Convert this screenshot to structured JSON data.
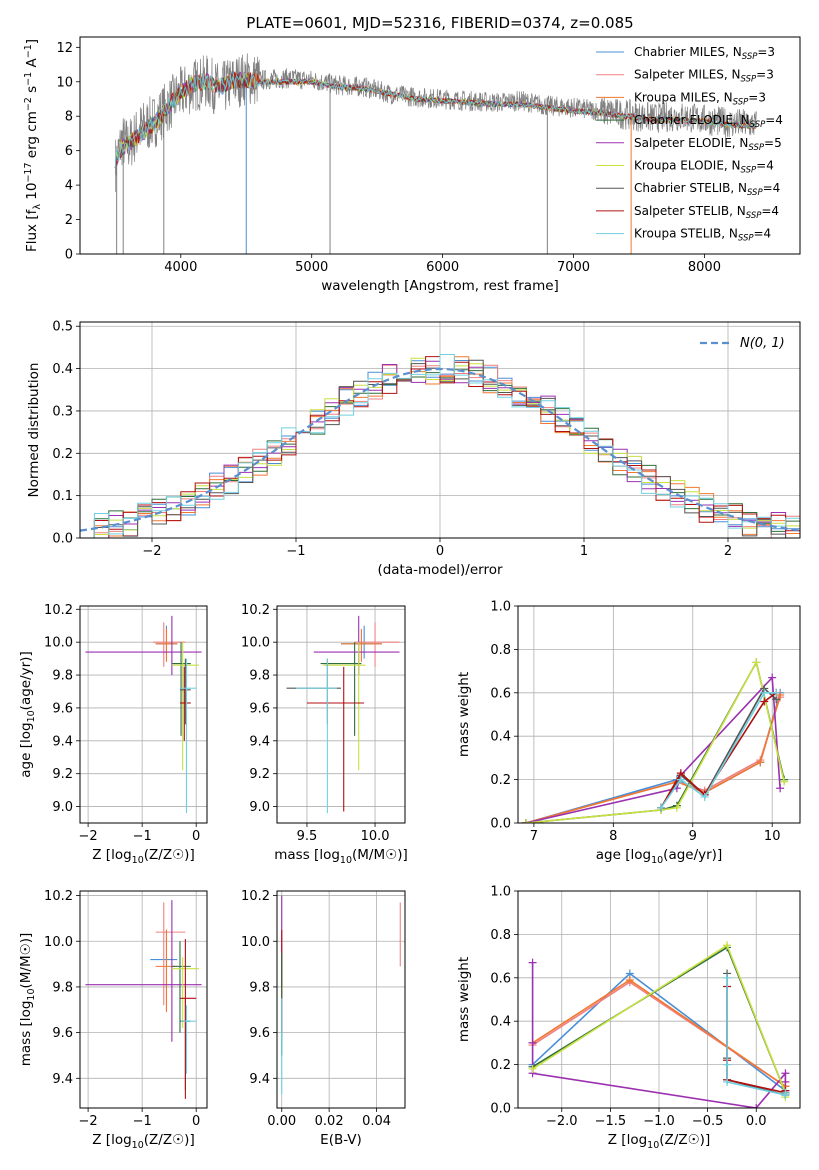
{
  "figure_title": "PLATE=0601, MJD=52316, FIBERID=0374, z=0.085",
  "colors": {
    "Chabrier MILES": "#4a8fd6",
    "Salpeter MILES": "#f08080",
    "Kroupa MILES": "#f07830",
    "Chabrier ELODIE": "#2e6e3a",
    "Salpeter ELODIE": "#9b30b0",
    "Kroupa ELODIE": "#c8e040",
    "Chabrier STELIB": "#555555",
    "Salpeter STELIB": "#b01010",
    "Kroupa STELIB": "#70d0e0",
    "grid": "#b0b0b0",
    "normal_fit": "#5a8fd0"
  },
  "legend_spectrum": [
    {
      "name": "Chabrier MILES",
      "label": "Chabrier MILES, N",
      "sub": "SSP",
      "tail": "=3"
    },
    {
      "name": "Salpeter MILES",
      "label": "Salpeter MILES, N",
      "sub": "SSP",
      "tail": "=3"
    },
    {
      "name": "Kroupa MILES",
      "label": "Kroupa MILES, N",
      "sub": "SSP",
      "tail": "=3"
    },
    {
      "name": "Chabrier ELODIE",
      "label": "Chabrier ELODIE, N",
      "sub": "SSP",
      "tail": "=4"
    },
    {
      "name": "Salpeter ELODIE",
      "label": "Salpeter ELODIE, N",
      "sub": "SSP",
      "tail": "=5"
    },
    {
      "name": "Kroupa ELODIE",
      "label": "Kroupa ELODIE, N",
      "sub": "SSP",
      "tail": "=4"
    },
    {
      "name": "Chabrier STELIB",
      "label": "Chabrier STELIB, N",
      "sub": "SSP",
      "tail": "=4"
    },
    {
      "name": "Salpeter STELIB",
      "label": "Salpeter STELIB, N",
      "sub": "SSP",
      "tail": "=4"
    },
    {
      "name": "Kroupa STELIB",
      "label": "Kroupa STELIB, N",
      "sub": "SSP",
      "tail": "=4"
    }
  ],
  "chart_data": [
    {
      "id": "spectrum",
      "type": "line",
      "title": "PLATE=0601, MJD=52316, FIBERID=0374, z=0.085",
      "xlabel": "wavelength [Angstrom, rest frame]",
      "ylabel": "Flux [f_λ 10^-17 erg cm^-2 s^-1 A^-1]",
      "xlim": [
        3230,
        8730
      ],
      "ylim": [
        0,
        12.6
      ],
      "xticks": [
        4000,
        5000,
        6000,
        7000,
        8000
      ],
      "yticks": [
        0,
        2,
        4,
        6,
        8,
        10,
        12
      ],
      "grid": false,
      "legend": "top-right",
      "data_x": [
        3500,
        3550,
        3600,
        3700,
        3800,
        3900,
        4000,
        4100,
        4200,
        4300,
        4400,
        4500,
        4600,
        4800,
        5000,
        5200,
        5400,
        5600,
        5800,
        6000,
        6200,
        6400,
        6600,
        6800,
        7000,
        7200,
        7400,
        7600,
        7800,
        8000,
        8200,
        8400
      ],
      "data_y": [
        5.2,
        6.6,
        6.3,
        7.3,
        7.7,
        8.6,
        9.3,
        9.8,
        10.0,
        9.5,
        10.0,
        10.2,
        10.1,
        10.2,
        10.1,
        9.8,
        9.7,
        9.3,
        9.1,
        9.0,
        8.9,
        8.8,
        8.9,
        8.6,
        8.5,
        8.3,
        8.1,
        7.9,
        8.0,
        7.8,
        7.6,
        7.5
      ],
      "model_y": [
        5.5,
        6.2,
        6.4,
        7.0,
        7.6,
        8.5,
        9.4,
        9.9,
        10.0,
        9.7,
        10.1,
        10.1,
        10.0,
        10.0,
        10.0,
        9.7,
        9.6,
        9.3,
        9.0,
        8.9,
        8.8,
        8.7,
        8.7,
        8.5,
        8.3,
        8.2,
        8.0,
        7.8,
        7.8,
        7.7,
        7.5,
        7.4
      ]
    },
    {
      "id": "residuals",
      "type": "line",
      "xlabel": "(data-model)/error",
      "ylabel": "Normed distribution",
      "xlim": [
        -2.5,
        2.5
      ],
      "ylim": [
        0,
        0.51
      ],
      "xticks": [
        -2,
        -1,
        0,
        1,
        2
      ],
      "yticks": [
        0.0,
        0.1,
        0.2,
        0.3,
        0.4,
        0.5
      ],
      "grid": true,
      "legend": "top-right",
      "legend_label": "N(0, 1)",
      "bin_width": 0.1
    },
    {
      "id": "age-vs-Z",
      "type": "scatter",
      "xlabel": "Z [log10(Z/Z☉)]",
      "ylabel": "age [log10(age/yr)]",
      "xlim": [
        -2.15,
        0.2
      ],
      "ylim": [
        8.9,
        10.22
      ],
      "xticks": [
        -2,
        -1,
        0
      ],
      "yticks": [
        9.0,
        9.2,
        9.4,
        9.6,
        9.8,
        10.0,
        10.2
      ],
      "grid": true,
      "points": [
        {
          "s": "Chabrier MILES",
          "x": -0.55,
          "xlo": -0.75,
          "xhi": -0.35,
          "y": 9.99,
          "ylo": 9.9,
          "yhi": 10.1
        },
        {
          "s": "Salpeter MILES",
          "x": -0.6,
          "xlo": -0.8,
          "xhi": -0.2,
          "y": 10.0,
          "ylo": 9.85,
          "yhi": 10.12
        },
        {
          "s": "Kroupa MILES",
          "x": -0.55,
          "xlo": -0.75,
          "xhi": -0.35,
          "y": 9.99,
          "ylo": 9.88,
          "yhi": 10.08
        },
        {
          "s": "Chabrier ELODIE",
          "x": -0.28,
          "xlo": -0.45,
          "xhi": -0.1,
          "y": 9.87,
          "ylo": 9.43,
          "yhi": 10.0
        },
        {
          "s": "Salpeter ELODIE",
          "x": -0.45,
          "xlo": -2.05,
          "xhi": 0.1,
          "y": 9.94,
          "ylo": 9.8,
          "yhi": 10.16
        },
        {
          "s": "Kroupa ELODIE",
          "x": -0.25,
          "xlo": -0.45,
          "xhi": 0.05,
          "y": 9.86,
          "ylo": 9.22,
          "yhi": 10.0
        },
        {
          "s": "Chabrier STELIB",
          "x": -0.2,
          "xlo": -0.3,
          "xhi": -0.1,
          "y": 9.71,
          "ylo": 9.5,
          "yhi": 9.9
        },
        {
          "s": "Salpeter STELIB",
          "x": -0.22,
          "xlo": -0.3,
          "xhi": -0.1,
          "y": 9.63,
          "ylo": 9.4,
          "yhi": 9.85
        },
        {
          "s": "Kroupa STELIB",
          "x": -0.18,
          "xlo": -0.28,
          "xhi": 0.0,
          "y": 9.72,
          "ylo": 8.96,
          "yhi": 9.9
        }
      ]
    },
    {
      "id": "age-vs-mass",
      "type": "scatter",
      "xlabel": "mass [log10(M/M☉)]",
      "ylabel": "",
      "xlim": [
        9.28,
        10.22
      ],
      "ylim": [
        8.9,
        10.22
      ],
      "xticks": [
        9.5,
        10.0
      ],
      "yticks": [
        9.0,
        9.2,
        9.4,
        9.6,
        9.8,
        10.0,
        10.2
      ],
      "grid": true,
      "points": [
        {
          "s": "Chabrier MILES",
          "x": 9.92,
          "xlo": 9.75,
          "xhi": 10.05,
          "y": 9.99,
          "ylo": 9.9,
          "yhi": 10.1
        },
        {
          "s": "Salpeter MILES",
          "x": 10.0,
          "xlo": 9.85,
          "xhi": 10.18,
          "y": 10.0,
          "ylo": 9.85,
          "yhi": 10.12
        },
        {
          "s": "Kroupa MILES",
          "x": 9.9,
          "xlo": 9.75,
          "xhi": 10.05,
          "y": 9.99,
          "ylo": 9.88,
          "yhi": 10.08
        },
        {
          "s": "Chabrier ELODIE",
          "x": 9.85,
          "xlo": 9.6,
          "xhi": 9.9,
          "y": 9.87,
          "ylo": 9.43,
          "yhi": 10.0
        },
        {
          "s": "Salpeter ELODIE",
          "x": 9.88,
          "xlo": 9.55,
          "xhi": 10.18,
          "y": 9.94,
          "ylo": 9.8,
          "yhi": 10.16
        },
        {
          "s": "Kroupa ELODIE",
          "x": 9.88,
          "xlo": 9.62,
          "xhi": 9.93,
          "y": 9.86,
          "ylo": 9.22,
          "yhi": 10.0
        },
        {
          "s": "Chabrier STELIB",
          "x": 9.65,
          "xlo": 9.35,
          "xhi": 9.75,
          "y": 9.72,
          "ylo": 9.5,
          "yhi": 9.9
        },
        {
          "s": "Salpeter STELIB",
          "x": 9.77,
          "xlo": 9.5,
          "xhi": 9.92,
          "y": 9.63,
          "ylo": 8.97,
          "yhi": 9.85
        },
        {
          "s": "Kroupa STELIB",
          "x": 9.65,
          "xlo": 9.42,
          "xhi": 9.72,
          "y": 9.72,
          "ylo": 8.96,
          "yhi": 9.9
        }
      ]
    },
    {
      "id": "weight-vs-age",
      "type": "line",
      "xlabel": "age [log10(age/yr)]",
      "ylabel": "mass weight",
      "xlim": [
        6.8,
        10.35
      ],
      "ylim": [
        0,
        1.0
      ],
      "xticks": [
        7,
        8,
        9,
        10
      ],
      "yticks": [
        0.0,
        0.2,
        0.4,
        0.6,
        0.8,
        1.0
      ],
      "grid": true,
      "series": [
        {
          "s": "Chabrier MILES",
          "x": [
            6.9,
            8.8,
            9.15,
            9.85,
            10.1
          ],
          "y": [
            0.0,
            0.2,
            0.14,
            0.28,
            0.6
          ]
        },
        {
          "s": "Salpeter MILES",
          "x": [
            6.9,
            8.8,
            9.15,
            9.85,
            10.1
          ],
          "y": [
            0.0,
            0.19,
            0.15,
            0.29,
            0.58
          ]
        },
        {
          "s": "Kroupa MILES",
          "x": [
            6.9,
            8.8,
            9.15,
            9.85,
            10.1
          ],
          "y": [
            0.0,
            0.19,
            0.14,
            0.28,
            0.59
          ]
        },
        {
          "s": "Chabrier ELODIE",
          "x": [
            6.9,
            8.6,
            8.8,
            9.8,
            10.15
          ],
          "y": [
            0.0,
            0.06,
            0.08,
            0.74,
            0.2
          ]
        },
        {
          "s": "Salpeter ELODIE",
          "x": [
            6.9,
            8.8,
            8.85,
            10.0,
            10.1
          ],
          "y": [
            0.0,
            0.16,
            0.22,
            0.67,
            0.16
          ]
        },
        {
          "s": "Kroupa ELODIE",
          "x": [
            6.9,
            8.6,
            8.8,
            9.8,
            10.15
          ],
          "y": [
            0.0,
            0.06,
            0.07,
            0.74,
            0.19
          ]
        },
        {
          "s": "Chabrier STELIB",
          "x": [
            8.6,
            8.85,
            9.15,
            9.9,
            10.05
          ],
          "y": [
            0.07,
            0.22,
            0.13,
            0.62,
            0.57
          ]
        },
        {
          "s": "Salpeter STELIB",
          "x": [
            8.6,
            8.85,
            9.15,
            9.9,
            10.05
          ],
          "y": [
            0.07,
            0.23,
            0.13,
            0.56,
            0.6
          ]
        },
        {
          "s": "Kroupa STELIB",
          "x": [
            8.6,
            8.85,
            9.15,
            9.9,
            10.05
          ],
          "y": [
            0.07,
            0.2,
            0.12,
            0.6,
            0.6
          ]
        }
      ]
    },
    {
      "id": "mass-vs-Z",
      "type": "scatter",
      "xlabel": "Z [log10(Z/Z☉)]",
      "ylabel": "mass [log10(M/M☉)]",
      "xlim": [
        -2.15,
        0.2
      ],
      "ylim": [
        9.27,
        10.22
      ],
      "xticks": [
        -2,
        -1,
        0
      ],
      "yticks": [
        9.4,
        9.6,
        9.8,
        10.0,
        10.2
      ],
      "grid": true,
      "points": [
        {
          "s": "Chabrier MILES",
          "x": -0.55,
          "xlo": -0.85,
          "xhi": -0.35,
          "y": 9.92,
          "ylo": 9.7,
          "yhi": 10.05
        },
        {
          "s": "Salpeter MILES",
          "x": -0.6,
          "xlo": -0.75,
          "xhi": -0.2,
          "y": 10.04,
          "ylo": 9.72,
          "yhi": 10.17
        },
        {
          "s": "Kroupa MILES",
          "x": -0.55,
          "xlo": -0.75,
          "xhi": -0.35,
          "y": 9.89,
          "ylo": 9.69,
          "yhi": 10.05
        },
        {
          "s": "Chabrier ELODIE",
          "x": -0.3,
          "xlo": -0.45,
          "xhi": -0.1,
          "y": 9.89,
          "ylo": 9.6,
          "yhi": 10.0
        },
        {
          "s": "Salpeter ELODIE",
          "x": -0.45,
          "xlo": -2.05,
          "xhi": 0.1,
          "y": 9.81,
          "ylo": 9.56,
          "yhi": 10.18
        },
        {
          "s": "Kroupa ELODIE",
          "x": -0.25,
          "xlo": -0.45,
          "xhi": 0.05,
          "y": 9.88,
          "ylo": 9.62,
          "yhi": 9.93
        },
        {
          "s": "Chabrier STELIB",
          "x": -0.2,
          "xlo": -0.3,
          "xhi": -0.1,
          "y": 9.65,
          "ylo": 9.35,
          "yhi": 9.75
        },
        {
          "s": "Salpeter STELIB",
          "x": -0.2,
          "xlo": -0.3,
          "xhi": 0.0,
          "y": 9.75,
          "ylo": 9.31,
          "yhi": 10.01
        },
        {
          "s": "Kroupa STELIB",
          "x": -0.18,
          "xlo": -0.28,
          "xhi": 0.0,
          "y": 9.65,
          "ylo": 9.42,
          "yhi": 9.72
        }
      ]
    },
    {
      "id": "mass-vs-ebv",
      "type": "scatter",
      "xlabel": "E(B-V)",
      "ylabel": "",
      "xlim": [
        -0.002,
        0.052
      ],
      "ylim": [
        9.27,
        10.22
      ],
      "xticks": [
        0.0,
        0.02,
        0.04
      ],
      "yticks": [
        9.4,
        9.6,
        9.8,
        10.0,
        10.2
      ],
      "grid": true,
      "points": [
        {
          "s": "Salpeter MILES",
          "x": 0.05,
          "y": 10.04,
          "ylo": 9.89,
          "yhi": 10.17
        },
        {
          "s": "Salpeter ELODIE",
          "x": 0.0,
          "y": 10.0,
          "ylo": 9.8,
          "yhi": 10.2
        },
        {
          "s": "Salpeter STELIB",
          "x": 0.0,
          "y": 9.8,
          "ylo": 9.6,
          "yhi": 10.05
        },
        {
          "s": "Chabrier ELODIE",
          "x": 0.0,
          "y": 9.75,
          "ylo": 9.5,
          "yhi": 9.95
        },
        {
          "s": "Kroupa STELIB",
          "x": 0.0,
          "y": 9.55,
          "ylo": 9.33,
          "yhi": 9.75
        }
      ]
    },
    {
      "id": "weight-vs-Z",
      "type": "line",
      "xlabel": "Z [log10(Z/Z☉)]",
      "ylabel": "mass weight",
      "xlim": [
        -2.45,
        0.45
      ],
      "ylim": [
        0,
        1.0
      ],
      "xticks": [
        -2.0,
        -1.5,
        -1.0,
        -0.5,
        0.0
      ],
      "yticks": [
        0.0,
        0.2,
        0.4,
        0.6,
        0.8,
        1.0
      ],
      "grid": true,
      "series": [
        {
          "s": "Chabrier MILES",
          "x": [
            -2.3,
            -1.3,
            0.3,
            0.3
          ],
          "y": [
            0.2,
            0.62,
            0.08,
            0.1
          ]
        },
        {
          "s": "Salpeter MILES",
          "x": [
            -2.3,
            -1.3,
            0.3,
            0.3
          ],
          "y": [
            0.29,
            0.58,
            0.1,
            0.12
          ]
        },
        {
          "s": "Kroupa MILES",
          "x": [
            -2.3,
            -1.3,
            0.3,
            0.3
          ],
          "y": [
            0.3,
            0.59,
            0.1,
            0.12
          ]
        },
        {
          "s": "Chabrier ELODIE",
          "x": [
            -2.3,
            -0.3,
            0.3,
            0.3
          ],
          "y": [
            0.19,
            0.74,
            0.07,
            0.06
          ]
        },
        {
          "s": "Salpeter ELODIE",
          "x": [
            -2.3,
            -2.3,
            -2.3,
            0.0,
            0.3,
            0.3
          ],
          "y": [
            0.67,
            0.3,
            0.16,
            0.0,
            0.16,
            0.12
          ]
        },
        {
          "s": "Kroupa ELODIE",
          "x": [
            -2.3,
            -0.3,
            0.3,
            0.3
          ],
          "y": [
            0.18,
            0.75,
            0.07,
            0.05
          ]
        },
        {
          "s": "Chabrier STELIB",
          "x": [
            -0.3,
            -0.3,
            -0.3,
            0.3,
            0.3
          ],
          "y": [
            0.62,
            0.23,
            0.13,
            0.06,
            0.07
          ]
        },
        {
          "s": "Salpeter STELIB",
          "x": [
            -0.3,
            -0.3,
            -0.3,
            0.3,
            0.3
          ],
          "y": [
            0.56,
            0.22,
            0.13,
            0.07,
            0.08
          ]
        },
        {
          "s": "Kroupa STELIB",
          "x": [
            -0.3,
            -0.3,
            -0.3,
            0.3,
            0.3
          ],
          "y": [
            0.6,
            0.2,
            0.12,
            0.06,
            0.07
          ]
        }
      ]
    }
  ]
}
